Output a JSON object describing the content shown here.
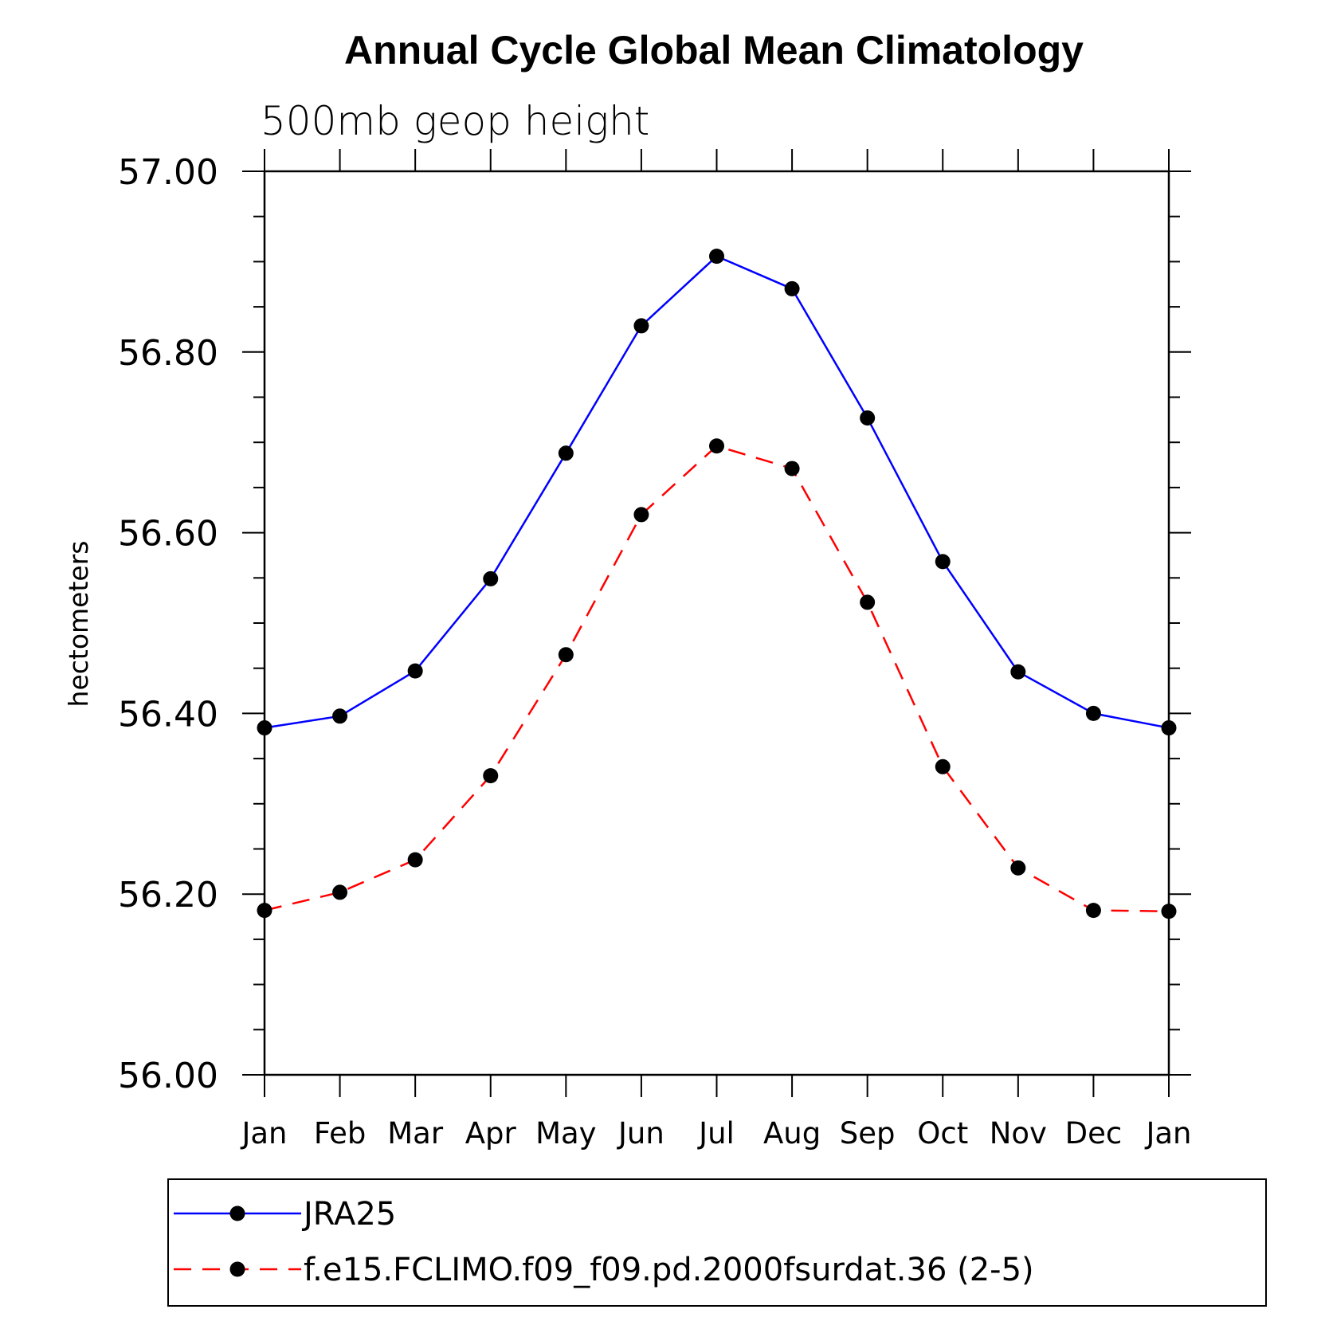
{
  "chart_data": {
    "type": "line",
    "title": "Annual Cycle Global Mean Climatology",
    "subtitle": "500mb geop height",
    "xlabel": "",
    "ylabel": "hectometers",
    "categories": [
      "Jan",
      "Feb",
      "Mar",
      "Apr",
      "May",
      "Jun",
      "Jul",
      "Aug",
      "Sep",
      "Oct",
      "Nov",
      "Dec",
      "Jan"
    ],
    "ylim": [
      56.0,
      57.0
    ],
    "yticks": [
      "56.00",
      "56.20",
      "56.40",
      "56.60",
      "56.80",
      "57.00"
    ],
    "grid": false,
    "legend_position": "bottom",
    "series": [
      {
        "name": "JRA25",
        "color": "#0000ff",
        "line_style": "solid",
        "marker": "filled-circle",
        "values": [
          56.384,
          56.397,
          56.447,
          56.549,
          56.688,
          56.829,
          56.906,
          56.87,
          56.727,
          56.568,
          56.446,
          56.4,
          56.384
        ]
      },
      {
        "name": "f.e15.FCLIMO.f09_f09.pd.2000fsurdat.36 (2-5)",
        "color": "#ff0000",
        "line_style": "dashed",
        "marker": "filled-circle",
        "values": [
          56.182,
          56.202,
          56.238,
          56.331,
          56.465,
          56.62,
          56.696,
          56.671,
          56.523,
          56.341,
          56.229,
          56.182,
          56.181
        ]
      }
    ]
  }
}
